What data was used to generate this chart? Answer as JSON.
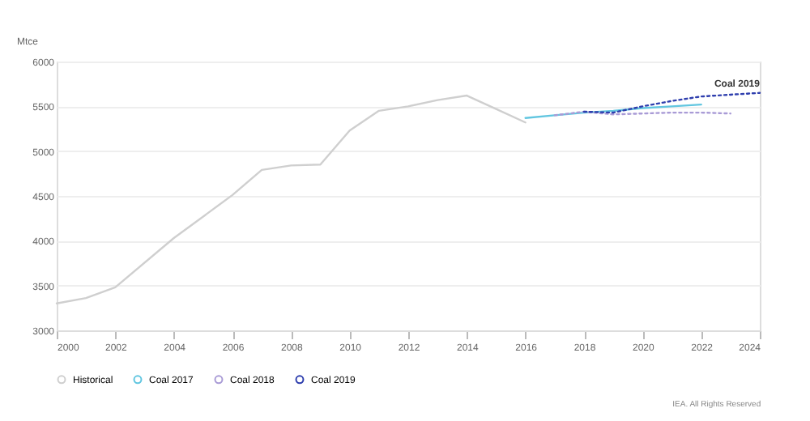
{
  "chart_data": {
    "type": "line",
    "ylabel": "Mtce",
    "x": [
      2000,
      2001,
      2002,
      2004,
      2006,
      2007,
      2008,
      2009,
      2010,
      2011,
      2012,
      2013,
      2014,
      2015,
      2016
    ],
    "series": [
      {
        "name": "Historical",
        "color": "#cfcfcf",
        "line_style": "solid",
        "values": [
          3300,
          3360,
          3480,
          4030,
          4510,
          4790,
          4840,
          4850,
          5230,
          5450,
          5500,
          5570,
          5620,
          5470,
          5320
        ]
      },
      {
        "name": "Coal 2017",
        "color": "#62c6e0",
        "line_style": "solid",
        "x": [
          2016,
          2017,
          2018,
          2019,
          2020,
          2021,
          2022
        ],
        "values": [
          5370,
          5400,
          5430,
          5450,
          5480,
          5500,
          5520
        ]
      },
      {
        "name": "Coal 2018",
        "color": "#a99bd6",
        "line_style": "dotted",
        "x": [
          2017,
          2018,
          2019,
          2020,
          2021,
          2022,
          2023
        ],
        "values": [
          5400,
          5440,
          5410,
          5420,
          5430,
          5430,
          5420
        ]
      },
      {
        "name": "Coal 2019",
        "color": "#2f3fae",
        "line_style": "dotted",
        "x": [
          2018,
          2019,
          2020,
          2021,
          2022,
          2023,
          2024
        ],
        "values": [
          5440,
          5430,
          5500,
          5560,
          5610,
          5630,
          5650
        ]
      }
    ],
    "xlim": [
      2000,
      2024
    ],
    "xticks": [
      2000,
      2002,
      2004,
      2006,
      2008,
      2010,
      2012,
      2014,
      2016,
      2018,
      2020,
      2022,
      2024
    ],
    "ylim": [
      3000,
      6000
    ],
    "yticks": [
      3000,
      3500,
      4000,
      4500,
      5000,
      5500,
      6000
    ],
    "grid": "y",
    "legend": "bottom left",
    "marker": "none",
    "annotations": [
      {
        "text": "Coal 2019",
        "x": 2024,
        "y": 5650
      },
      "IEA. All Rights Reserved"
    ]
  }
}
